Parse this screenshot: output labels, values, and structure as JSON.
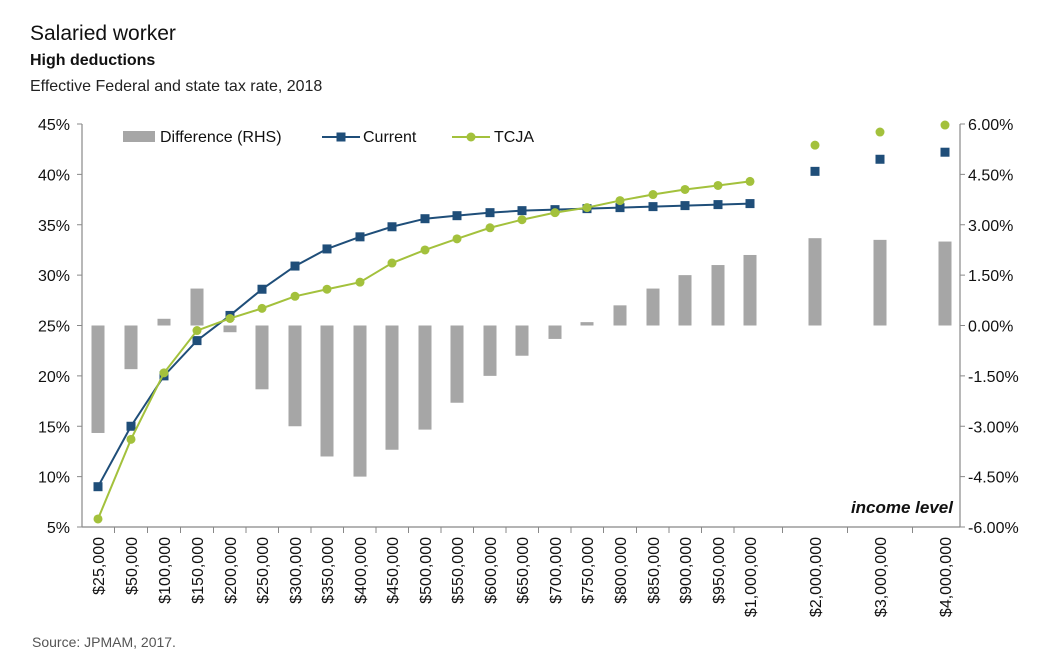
{
  "title": "Salaried worker",
  "subtitle": "High deductions",
  "description": "Effective Federal and state tax rate, 2018",
  "source": "Source: JPMAM, 2017.",
  "colors": {
    "difference": "#a6a6a6",
    "current": "#1f4e79",
    "tcja": "#a3c13c",
    "axis": "#888888"
  },
  "chart_data": {
    "type": "bar",
    "categories": [
      "$25,000",
      "$50,000",
      "$100,000",
      "$150,000",
      "$200,000",
      "$250,000",
      "$300,000",
      "$350,000",
      "$400,000",
      "$450,000",
      "$500,000",
      "$550,000",
      "$600,000",
      "$650,000",
      "$700,000",
      "$750,000",
      "$800,000",
      "$850,000",
      "$900,000",
      "$950,000",
      "$1,000,000",
      "$2,000,000",
      "$3,000,000",
      "$4,000,000"
    ],
    "annotation": "income level",
    "series": [
      {
        "name": "Difference (RHS)",
        "type": "bar",
        "axis": "right",
        "values": [
          -3.2,
          -1.3,
          0.2,
          1.1,
          -0.2,
          -1.9,
          -3.0,
          -3.9,
          -4.5,
          -3.7,
          -3.1,
          -2.3,
          -1.5,
          -0.9,
          -0.4,
          0.1,
          0.6,
          1.1,
          1.5,
          1.8,
          2.1,
          2.6,
          2.55,
          2.5
        ]
      },
      {
        "name": "Current",
        "type": "line",
        "axis": "left",
        "values": [
          9.0,
          15.0,
          20.0,
          23.5,
          26.0,
          28.6,
          30.9,
          32.6,
          33.8,
          34.8,
          35.6,
          35.9,
          36.2,
          36.4,
          36.5,
          36.6,
          36.7,
          36.8,
          36.9,
          37.0,
          37.1,
          40.3,
          41.5,
          42.2
        ]
      },
      {
        "name": "TCJA",
        "type": "line",
        "axis": "left",
        "values": [
          5.8,
          13.7,
          20.3,
          24.5,
          25.7,
          26.7,
          27.9,
          28.6,
          29.3,
          31.2,
          32.5,
          33.6,
          34.7,
          35.5,
          36.2,
          36.7,
          37.4,
          38.0,
          38.5,
          38.9,
          39.3,
          42.9,
          44.2,
          44.9
        ]
      }
    ],
    "connected_points": 21,
    "left_axis": {
      "ylim": [
        5,
        45
      ],
      "ticks": [
        5,
        10,
        15,
        20,
        25,
        30,
        35,
        40,
        45
      ],
      "tick_labels": [
        "5%",
        "10%",
        "15%",
        "20%",
        "25%",
        "30%",
        "35%",
        "40%",
        "45%"
      ]
    },
    "right_axis": {
      "ylim": [
        -6,
        6
      ],
      "ticks": [
        -6,
        -4.5,
        -3,
        -1.5,
        0,
        1.5,
        3,
        4.5,
        6
      ],
      "tick_labels": [
        "-6.00%",
        "-4.50%",
        "-3.00%",
        "-1.50%",
        "0.00%",
        "1.50%",
        "3.00%",
        "4.50%",
        "6.00%"
      ]
    },
    "grid": false,
    "legend_position": "top-left"
  }
}
